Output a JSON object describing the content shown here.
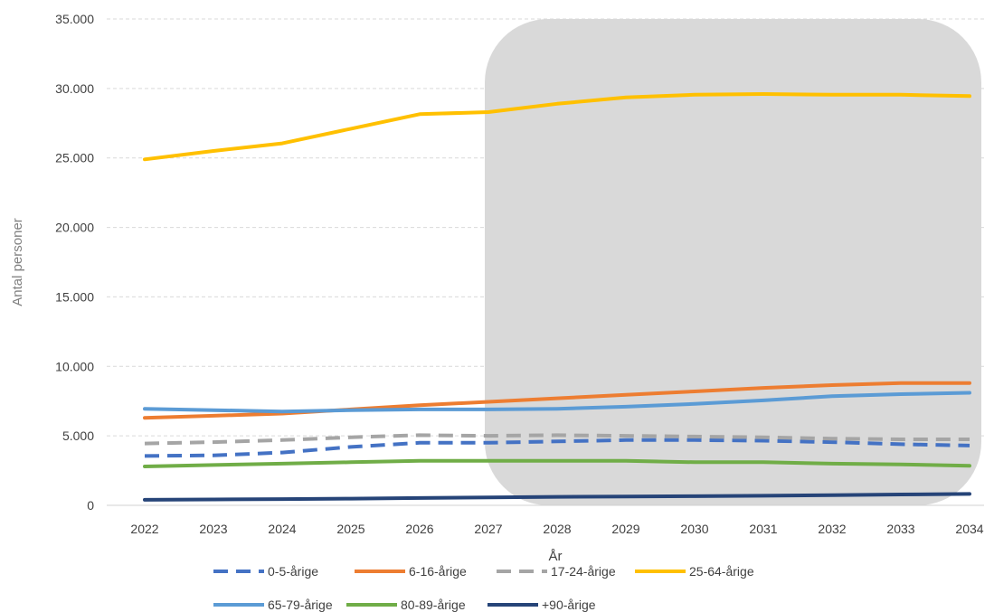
{
  "chart_data": {
    "type": "line",
    "title": "",
    "xlabel": "År",
    "ylabel": "Antal personer",
    "ylim": [
      0,
      35000
    ],
    "yticks": [
      "0",
      "5.000",
      "10.000",
      "15.000",
      "20.000",
      "25.000",
      "30.000",
      "35.000"
    ],
    "ytick_values": [
      0,
      5000,
      10000,
      15000,
      20000,
      25000,
      30000,
      35000
    ],
    "categories": [
      "2022",
      "2023",
      "2024",
      "2025",
      "2026",
      "2027",
      "2028",
      "2029",
      "2030",
      "2031",
      "2032",
      "2033",
      "2034"
    ],
    "grid": "horizontal dashed",
    "legend_position": "bottom",
    "highlight": {
      "from_category": "2027",
      "to_category": "2034",
      "color": "#d9d9d9"
    },
    "series": [
      {
        "name": "0-5-årige",
        "color": "#4472c4",
        "style": "dashed",
        "values": [
          3550,
          3600,
          3800,
          4200,
          4500,
          4500,
          4600,
          4700,
          4700,
          4650,
          4550,
          4400,
          4300
        ]
      },
      {
        "name": "6-16-årige",
        "color": "#ed7d31",
        "style": "solid",
        "values": [
          6300,
          6450,
          6600,
          6900,
          7200,
          7450,
          7700,
          7950,
          8200,
          8450,
          8650,
          8800,
          8800
        ]
      },
      {
        "name": "17-24-årige",
        "color": "#a5a5a5",
        "style": "dashed",
        "values": [
          4450,
          4550,
          4700,
          4900,
          5050,
          5000,
          5050,
          5000,
          4950,
          4900,
          4800,
          4750,
          4750
        ]
      },
      {
        "name": "25-64-årige",
        "color": "#ffc000",
        "style": "solid",
        "values": [
          24900,
          25500,
          26050,
          27100,
          28150,
          28300,
          28900,
          29350,
          29550,
          29600,
          29550,
          29550,
          29450
        ]
      },
      {
        "name": "65-79-årige",
        "color": "#5b9bd5",
        "style": "solid",
        "values": [
          6950,
          6850,
          6750,
          6850,
          6900,
          6900,
          6950,
          7100,
          7300,
          7550,
          7850,
          8000,
          8100
        ]
      },
      {
        "name": "80-89-årige",
        "color": "#70ad47",
        "style": "solid",
        "values": [
          2800,
          2900,
          3000,
          3100,
          3200,
          3200,
          3200,
          3200,
          3100,
          3100,
          3000,
          2950,
          2850
        ]
      },
      {
        "name": "+90-årige",
        "color": "#264478",
        "style": "solid",
        "values": [
          400,
          420,
          450,
          480,
          530,
          570,
          610,
          640,
          660,
          690,
          730,
          780,
          820
        ]
      }
    ]
  }
}
